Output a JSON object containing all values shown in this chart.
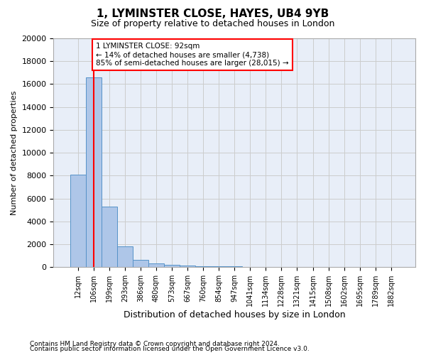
{
  "title": "1, LYMINSTER CLOSE, HAYES, UB4 9YB",
  "subtitle": "Size of property relative to detached houses in London",
  "xlabel": "Distribution of detached houses by size in London",
  "ylabel": "Number of detached properties",
  "bar_values": [
    8100,
    16600,
    5300,
    1800,
    650,
    350,
    200,
    120,
    80,
    60,
    50,
    40,
    30,
    25,
    20,
    15,
    12,
    10,
    8,
    6,
    5
  ],
  "bar_labels": [
    "12sqm",
    "106sqm",
    "199sqm",
    "293sqm",
    "386sqm",
    "480sqm",
    "573sqm",
    "667sqm",
    "760sqm",
    "854sqm",
    "947sqm",
    "1041sqm",
    "1134sqm",
    "1228sqm",
    "1321sqm",
    "1415sqm",
    "1508sqm",
    "1602sqm",
    "1695sqm",
    "1789sqm",
    "1882sqm"
  ],
  "bar_color": "#aec6e8",
  "bar_edgecolor": "#5592c8",
  "annotation_box_color": "#ffffff",
  "annotation_box_edgecolor": "#ff0000",
  "annotation_text": "1 LYMINSTER CLOSE: 92sqm\n← 14% of detached houses are smaller (4,738)\n85% of semi-detached houses are larger (28,015) →",
  "red_line_x": 1.0,
  "ylim": [
    0,
    20000
  ],
  "yticks": [
    0,
    2000,
    4000,
    6000,
    8000,
    10000,
    12000,
    14000,
    16000,
    18000,
    20000
  ],
  "footer_line1": "Contains HM Land Registry data © Crown copyright and database right 2024.",
  "footer_line2": "Contains public sector information licensed under the Open Government Licence v3.0.",
  "background_color": "#ffffff",
  "axes_facecolor": "#e8eef8",
  "grid_color": "#cccccc"
}
